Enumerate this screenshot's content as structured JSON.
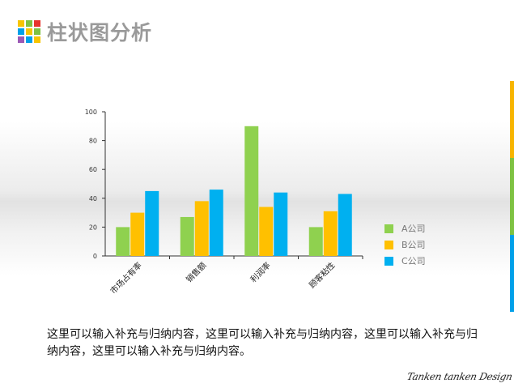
{
  "header": {
    "title": "柱状图分析",
    "logo_colors": [
      "#f7c500",
      "#7ec242",
      "#e7332c",
      "#00a0e9",
      "#f7c500",
      "#7ec242",
      "#9b59b6",
      "#00a0e9",
      "#f7c500"
    ]
  },
  "side_bar_colors": [
    "#f7b500",
    "#7ec242",
    "#00a0e9"
  ],
  "chart_data": {
    "type": "bar",
    "categories": [
      "市场占有率",
      "销售额",
      "利润率",
      "顾客粘性"
    ],
    "series": [
      {
        "name": "A公司",
        "values": [
          20,
          27,
          90,
          20
        ],
        "color": "#8fd14f"
      },
      {
        "name": "B公司",
        "values": [
          30,
          38,
          34,
          31
        ],
        "color": "#ffc000"
      },
      {
        "name": "C公司",
        "values": [
          45,
          46,
          44,
          43
        ],
        "color": "#00b0f0"
      }
    ],
    "ylim": [
      0,
      100
    ],
    "yticks": [
      "0",
      "20",
      "40",
      "60",
      "80",
      "100"
    ],
    "grid": false,
    "legend_position": "right"
  },
  "body_text": "这里可以输入补充与归纳内容，这里可以输入补充与归纳内容，这里可以输入补充与归纳内容，这里可以输入补充与归纳内容。",
  "signature": "Tanken tanken Design"
}
